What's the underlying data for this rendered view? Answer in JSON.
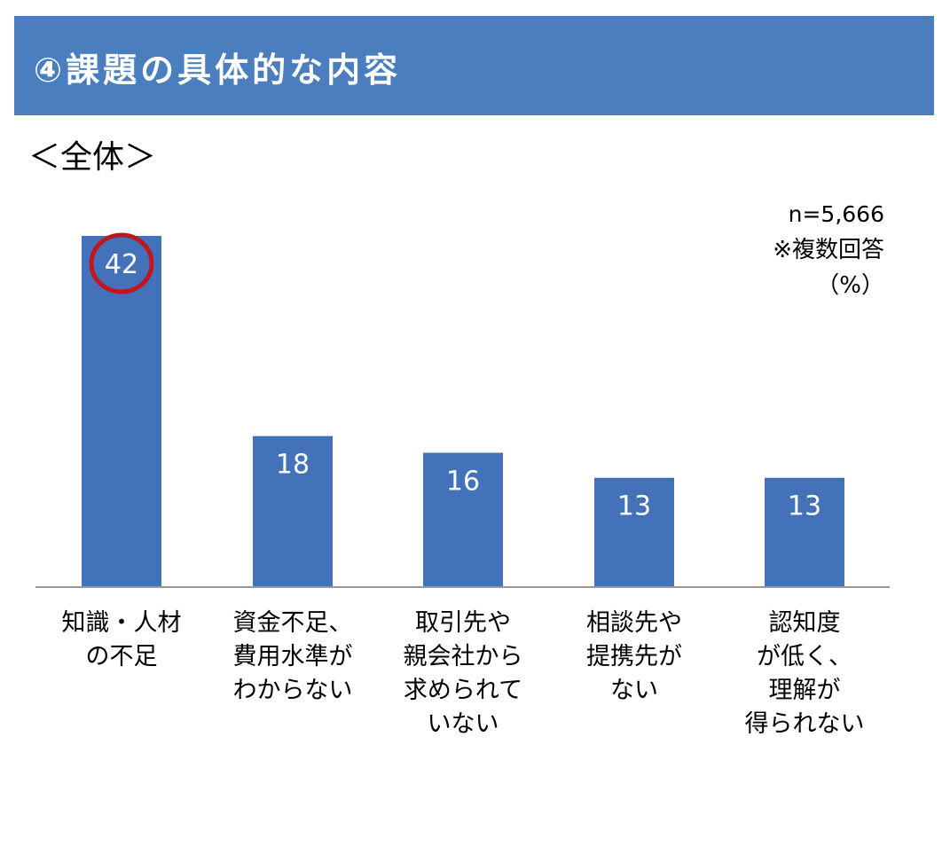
{
  "header": {
    "title": "④課題の具体的な内容"
  },
  "subtitle": "＜全体＞",
  "notes": {
    "n": "n=5,666",
    "multiple": "※複数回答",
    "unit": "（%）"
  },
  "chart_data": {
    "type": "bar",
    "categories": [
      "知識・人材\nの不足",
      "資金不足、\n費用水準が\nわからない",
      "取引先や\n親会社から\n求められて\nいない",
      "相談先や\n提携先が\nない",
      "認知度\nが低く、\n理解が\n得られない"
    ],
    "values": [
      42,
      18,
      16,
      13,
      13
    ],
    "ylim": [
      0,
      42
    ],
    "highlight_index": 0,
    "colors": {
      "bar": "#4472b8",
      "highlight_circle": "#c0161f",
      "axis": "#999999"
    }
  }
}
